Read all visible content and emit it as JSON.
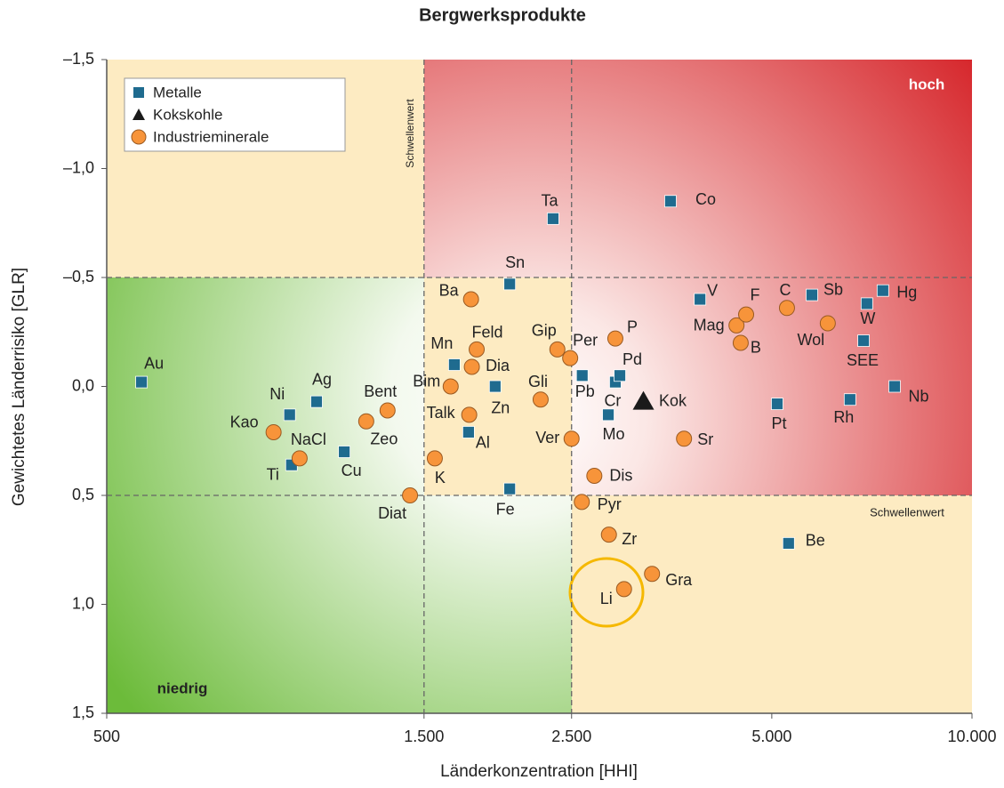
{
  "chart_data": {
    "type": "scatter",
    "title": "Bergwerksprodukte",
    "x_label": "Länderkonzentration [HHI]",
    "y_label": "Gewichtetes Länderrisiko [GLR]",
    "x_log": true,
    "y_inverted": true,
    "xlim": [
      500,
      10000
    ],
    "ylim": [
      -1.5,
      1.5
    ],
    "xticks": [
      {
        "value": 500,
        "label": "500"
      },
      {
        "value": 1500,
        "label": "1.500"
      },
      {
        "value": 2500,
        "label": "2.500"
      },
      {
        "value": 5000,
        "label": "5.000"
      },
      {
        "value": 10000,
        "label": "10.000"
      }
    ],
    "yticks": [
      {
        "value": -1.5,
        "label": "–1,5"
      },
      {
        "value": -1.0,
        "label": "–1,0"
      },
      {
        "value": -0.5,
        "label": "–0,5"
      },
      {
        "value": 0,
        "label": "0,0"
      },
      {
        "value": 0.5,
        "label": "0,5"
      },
      {
        "value": 1.0,
        "label": "1,0"
      },
      {
        "value": 1.5,
        "label": "1,5"
      }
    ],
    "annotations": [
      "Schwellenwert",
      "Schwellenwert",
      "hoch",
      "niedrig"
    ],
    "legend": "upper left",
    "series": [
      {
        "name": "Metalle",
        "color": "#1f6b8f",
        "marker": "square",
        "labels": [
          "Au",
          "Ni",
          "Ag",
          "Ti",
          "Cu",
          "Mn",
          "Zn",
          "Al",
          "Fe",
          "Sn",
          "Ta",
          "Co",
          "Pb",
          "Cr",
          "Pd",
          "Mo",
          "V",
          "Sb",
          "W",
          "Hg",
          "SEE",
          "Rh",
          "Nb",
          "Pt",
          "Be"
        ],
        "x": [
          564,
          942,
          1034,
          948,
          1138,
          1666,
          1919,
          1750,
          2018,
          2018,
          2345,
          3521,
          2594,
          2909,
          2955,
          2839,
          3900,
          5745,
          6950,
          7346,
          6870,
          6555,
          7650,
          5095,
          5300
        ],
        "values": [
          -0.02,
          0.13,
          0.07,
          0.36,
          0.3,
          -0.1,
          0.0,
          0.21,
          0.47,
          -0.47,
          -0.77,
          -0.85,
          -0.05,
          -0.02,
          -0.05,
          0.13,
          -0.4,
          -0.42,
          -0.38,
          -0.44,
          -0.21,
          0.06,
          0.0,
          0.08,
          0.72
        ]
      },
      {
        "name": "Kokskohle",
        "color": "#1a1a1a",
        "marker": "triangle",
        "labels": [
          "Kok"
        ],
        "x": [
          3206
        ],
        "values": [
          0.07
        ]
      },
      {
        "name": "Industrieminerale",
        "color": "#f7943a",
        "marker": "circle",
        "labels": [
          "Kao",
          "NaCl",
          "Bent",
          "Zeo",
          "Diat",
          "K",
          "Bim",
          "Talk",
          "Ba",
          "Feld",
          "Dia",
          "Gip",
          "Per",
          "Gli",
          "Ver",
          "P",
          "Dis",
          "Pyr",
          "Zr",
          "Li",
          "Gra",
          "Sr",
          "Mag",
          "F",
          "B",
          "C",
          "Wol"
        ],
        "x": [
          891,
          975,
          1322,
          1228,
          1429,
          1557,
          1645,
          1754,
          1765,
          1800,
          1770,
          2380,
          2488,
          2246,
          2500,
          2909,
          2705,
          2590,
          2845,
          2998,
          3303,
          3690,
          4425,
          4575,
          4490,
          5270,
          6070
        ],
        "values": [
          0.21,
          0.33,
          0.11,
          0.16,
          0.5,
          0.33,
          0.0,
          0.13,
          -0.4,
          -0.17,
          -0.09,
          -0.17,
          -0.13,
          0.06,
          0.24,
          -0.22,
          0.41,
          0.53,
          0.68,
          0.93,
          0.86,
          0.24,
          -0.28,
          -0.33,
          -0.2,
          -0.36,
          -0.29
        ]
      }
    ]
  }
}
